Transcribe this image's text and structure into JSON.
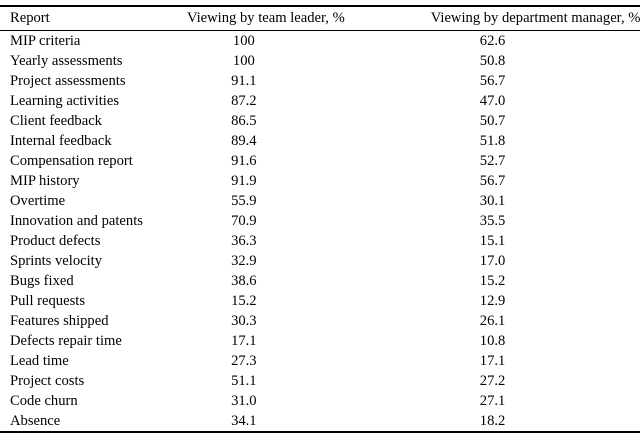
{
  "table": {
    "header": {
      "report": "Report",
      "team_leader": "Viewing by team leader, %",
      "dept_manager": "Viewing by department manager, %"
    },
    "rows": [
      [
        "MIP criteria",
        "100",
        "62.6"
      ],
      [
        "Yearly assessments",
        "100",
        "50.8"
      ],
      [
        "Project assessments",
        "91.1",
        "56.7"
      ],
      [
        "Learning activities",
        "87.2",
        "47.0"
      ],
      [
        "Client feedback",
        "86.5",
        "50.7"
      ],
      [
        "Internal feedback",
        "89.4",
        "51.8"
      ],
      [
        "Compensation report",
        "91.6",
        "52.7"
      ],
      [
        "MIP history",
        "91.9",
        "56.7"
      ],
      [
        "Overtime",
        "55.9",
        "30.1"
      ],
      [
        "Innovation and patents",
        "70.9",
        "35.5"
      ],
      [
        "Product defects",
        "36.3",
        "15.1"
      ],
      [
        "Sprints velocity",
        "32.9",
        "17.0"
      ],
      [
        "Bugs fixed",
        "38.6",
        "15.2"
      ],
      [
        "Pull requests",
        "15.2",
        "12.9"
      ],
      [
        "Features shipped",
        "30.3",
        "26.1"
      ],
      [
        "Defects repair time",
        "17.1",
        "10.8"
      ],
      [
        "Lead time",
        "27.3",
        "17.1"
      ],
      [
        "Project costs",
        "51.1",
        "27.2"
      ],
      [
        "Code churn",
        "31.0",
        "27.1"
      ],
      [
        "Absence",
        "34.1",
        "18.2"
      ]
    ]
  }
}
